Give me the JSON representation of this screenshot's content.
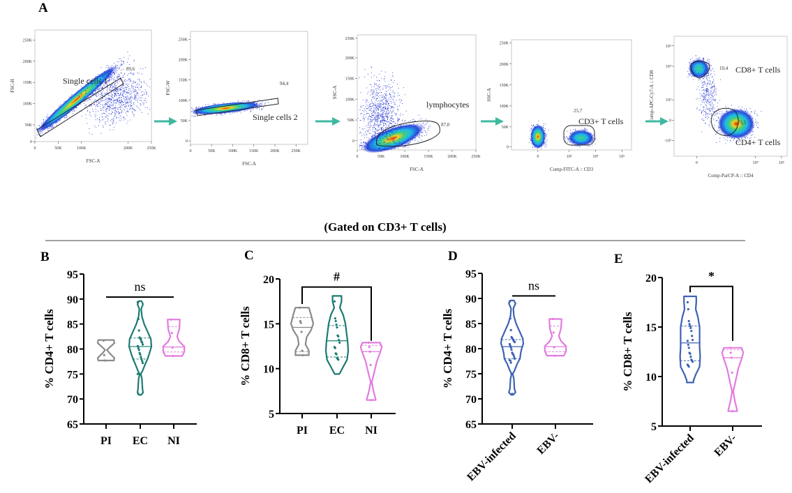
{
  "panel_a": {
    "letter": "A",
    "arrow_color": "#3fb8a0",
    "plots": [
      {
        "ylabel": "FSC-H",
        "xlabel": "FSC-A",
        "yticks": [
          "250K",
          "200K",
          "150K",
          "100K",
          "50K",
          "0"
        ],
        "xticks": [
          "0",
          "50K",
          "100K",
          "200K",
          "250K"
        ],
        "gate_name": "Single cells 1",
        "gate_pct": "89,6"
      },
      {
        "ylabel": "FSC-W",
        "xlabel": "FSC-A",
        "yticks": [
          "250K",
          "200K",
          "150K",
          "100K",
          "50K",
          "0"
        ],
        "xticks": [
          "0",
          "50K",
          "100K",
          "150K",
          "200K",
          "250K"
        ],
        "gate_name": "Single cells 2",
        "gate_pct": "94,4"
      },
      {
        "ylabel": "SSC-A",
        "xlabel": "FSC-A",
        "yticks": [
          "250K",
          "200K",
          "150K",
          "100K",
          "50K",
          "0"
        ],
        "xticks": [
          "0",
          "50K",
          "100K",
          "150K",
          "200K",
          "250K"
        ],
        "gate_name": "lymphocytes",
        "gate_pct": "87,0"
      },
      {
        "ylabel": "SSC-A",
        "xlabel": "Comp-FITC-A :: CD3",
        "yticks": [
          "250K",
          "200K",
          "150K",
          "100K",
          "50K",
          "0"
        ],
        "xticks": [
          "0",
          "10³",
          "10⁴",
          "10⁵"
        ],
        "gate_name": "CD3+ T cells",
        "gate_pct": "25,7"
      },
      {
        "ylabel": "Comp-APC-Cy7-A :: CD8",
        "xlabel": "Comp-ParCP-A :: CD4",
        "yticks": [
          "10⁵",
          "10⁴",
          "10³",
          "0",
          "-10³"
        ],
        "xticks": [
          "0",
          "10⁴",
          "10⁵"
        ],
        "gates": [
          {
            "name": "CD8+ T cells",
            "pct": "10,4"
          },
          {
            "name": "CD4+ T cells",
            "pct": "75,5"
          }
        ]
      }
    ]
  },
  "banner": "(Gated on CD3+ T cells)",
  "colors": {
    "PI": "#8a8a8a",
    "EC": "#1b7a73",
    "NI": "#e27be0",
    "EBV-infected": "#3d62b3",
    "EBV-": "#e27be0"
  },
  "chart_data": [
    {
      "type": "violin",
      "letter": "B",
      "ylabel": "% CD4+ T cells",
      "ylim": [
        65,
        95
      ],
      "yticks": [
        "95",
        "90",
        "85",
        "80",
        "75",
        "70",
        "65"
      ],
      "categories": [
        "PI",
        "EC",
        "NI"
      ],
      "annotation": {
        "text": "ns",
        "type": "bar",
        "from": "PI",
        "to": "NI",
        "y": 90.4
      },
      "groups": [
        {
          "name": "PI",
          "median": null,
          "q1": null,
          "q3": null,
          "points": [
            81.7,
            78.8,
            77.7
          ],
          "density": [
            [
              81.8,
              0.7
            ],
            [
              81.2,
              0.75
            ],
            [
              80.3,
              0.3
            ],
            [
              79.8,
              0.08
            ],
            [
              79.2,
              0.3
            ],
            [
              78.2,
              0.75
            ],
            [
              77.7,
              0.7
            ]
          ]
        },
        {
          "name": "EC",
          "median": 80.5,
          "q1": 78.0,
          "q3": 82.2,
          "points": [
            89.4,
            86.0,
            83.7,
            82.3,
            82.1,
            81.9,
            81.5,
            81.3,
            80.9,
            80.6,
            80.2,
            79.8,
            79.2,
            78.9,
            78.4,
            78.0,
            77.6,
            77.2,
            75.0,
            71.0
          ],
          "density": [
            [
              89.6,
              0.1
            ],
            [
              89.0,
              0.25
            ],
            [
              88.0,
              0.08
            ],
            [
              86.5,
              0.15
            ],
            [
              85,
              0.35
            ],
            [
              83.5,
              0.65
            ],
            [
              82,
              0.95
            ],
            [
              80.5,
              1
            ],
            [
              79,
              0.8
            ],
            [
              78,
              0.65
            ],
            [
              77,
              0.45
            ],
            [
              75.6,
              0.2
            ],
            [
              75,
              0.05
            ],
            [
              74,
              0.15
            ],
            [
              72,
              0.2
            ],
            [
              71.3,
              0.25
            ],
            [
              70.8,
              0.08
            ]
          ]
        },
        {
          "name": "NI",
          "median": 80.4,
          "q1": 79.4,
          "q3": 84.5,
          "points": [
            85.9,
            83.2,
            80.3,
            78.6
          ],
          "density": [
            [
              85.9,
              0.55
            ],
            [
              84,
              0.5
            ],
            [
              82.5,
              0.3
            ],
            [
              81.5,
              0.5
            ],
            [
              80.5,
              0.95
            ],
            [
              79.5,
              0.95
            ],
            [
              78.8,
              0.8
            ],
            [
              78.6,
              0.75
            ]
          ]
        }
      ]
    },
    {
      "type": "violin",
      "letter": "C",
      "ylabel": "% CD8+ T cells",
      "ylim": [
        5,
        20
      ],
      "yticks": [
        "20",
        "15",
        "10",
        "5"
      ],
      "categories": [
        "PI",
        "EC",
        "NI"
      ],
      "annotation": {
        "text": "#",
        "type": "bracket",
        "from": "PI",
        "to": "NI",
        "y": 19.1,
        "left_end": 17.2,
        "right_end": 13.1
      },
      "groups": [
        {
          "name": "PI",
          "median": 14.6,
          "q1": 11.9,
          "q3": 15.7,
          "points": [
            16.8,
            15.3,
            15.1,
            14.1,
            12.0,
            11.5
          ],
          "density": [
            [
              16.8,
              0.6
            ],
            [
              16,
              0.8
            ],
            [
              15,
              1.0
            ],
            [
              14.3,
              0.8
            ],
            [
              13.5,
              0.4
            ],
            [
              12.7,
              0.3
            ],
            [
              12,
              0.6
            ],
            [
              11.5,
              0.6
            ]
          ]
        },
        {
          "name": "EC",
          "median": 13.1,
          "q1": 11.3,
          "q3": 14.8,
          "points": [
            17.5,
            15.6,
            15.3,
            14.9,
            14.6,
            13.7,
            13.6,
            13.2,
            12.9,
            12.4,
            12.3,
            11.7,
            11.6,
            11.2,
            11.1,
            11.0
          ],
          "density": [
            [
              18.1,
              0.4
            ],
            [
              17.5,
              0.4
            ],
            [
              16.8,
              0.25
            ],
            [
              16,
              0.55
            ],
            [
              15,
              0.75
            ],
            [
              14,
              0.85
            ],
            [
              13,
              0.95
            ],
            [
              12,
              1.0
            ],
            [
              11,
              0.9
            ],
            [
              10.2,
              0.55
            ],
            [
              9.6,
              0.3
            ],
            [
              9.4,
              0.2
            ]
          ]
        },
        {
          "name": "NI",
          "median": 11.9,
          "q1": null,
          "q3": 12.6,
          "points": [
            12.9,
            12.4,
            11.9,
            10.4,
            6.5
          ],
          "density": [
            [
              12.9,
              0.8
            ],
            [
              12.4,
              0.95
            ],
            [
              11.8,
              0.8
            ],
            [
              10.8,
              0.5
            ],
            [
              9.5,
              0.25
            ],
            [
              8.5,
              0.05
            ],
            [
              7.5,
              0.2
            ],
            [
              6.6,
              0.4
            ],
            [
              6.5,
              0.4
            ]
          ]
        }
      ]
    },
    {
      "type": "violin",
      "letter": "D",
      "ylabel": "% CD4+ T cells",
      "ylim": [
        65,
        95
      ],
      "yticks": [
        "95",
        "90",
        "85",
        "80",
        "75",
        "70",
        "65"
      ],
      "categories": [
        "EBV-infected",
        "EBV-"
      ],
      "annotation": {
        "text": "ns",
        "type": "bar",
        "from": "EBV-infected",
        "to": "EBV-",
        "y": 90.5
      },
      "groups": [
        {
          "name": "EBV-infected",
          "median": 80.4,
          "q1": 78.0,
          "q3": 81.8,
          "points": [
            89.4,
            86.0,
            83.7,
            82.3,
            82.1,
            81.9,
            81.7,
            81.5,
            81.3,
            80.9,
            80.6,
            80.2,
            79.8,
            79.2,
            78.9,
            78.8,
            78.4,
            78.0,
            77.7,
            77.6,
            77.2,
            75.0,
            71.0
          ],
          "density": [
            [
              89.6,
              0.15
            ],
            [
              89.0,
              0.3
            ],
            [
              88.0,
              0.1
            ],
            [
              86.5,
              0.15
            ],
            [
              85,
              0.35
            ],
            [
              83.5,
              0.65
            ],
            [
              82,
              0.95
            ],
            [
              81,
              1
            ],
            [
              80,
              0.85
            ],
            [
              79,
              0.75
            ],
            [
              78,
              0.7
            ],
            [
              77,
              0.45
            ],
            [
              75.6,
              0.2
            ],
            [
              75,
              0.05
            ],
            [
              74,
              0.15
            ],
            [
              72,
              0.2
            ],
            [
              71.3,
              0.3
            ],
            [
              70.8,
              0.1
            ]
          ]
        },
        {
          "name": "EBV-",
          "median": 80.4,
          "q1": 79.4,
          "q3": 84.5,
          "points": [
            85.9,
            83.2,
            80.3,
            78.6
          ],
          "density": [
            [
              85.9,
              0.55
            ],
            [
              84,
              0.5
            ],
            [
              82.5,
              0.3
            ],
            [
              81.5,
              0.5
            ],
            [
              80.5,
              0.95
            ],
            [
              79.5,
              0.95
            ],
            [
              78.8,
              0.8
            ],
            [
              78.6,
              0.75
            ]
          ]
        }
      ]
    },
    {
      "type": "violin",
      "letter": "E",
      "ylabel": "% CD8+ T cells",
      "ylim": [
        5,
        20
      ],
      "yticks": [
        "20",
        "15",
        "10",
        "5"
      ],
      "categories": [
        "EBV-infected",
        "EBV-"
      ],
      "annotation": {
        "text": "*",
        "type": "bracket",
        "from": "EBV-infected",
        "to": "EBV-",
        "y": 19.1,
        "left_end": 18.5,
        "right_end": 13.6
      },
      "groups": [
        {
          "name": "EBV-infected",
          "median": 13.4,
          "q1": 11.6,
          "q3": 15.1,
          "points": [
            17.5,
            16.8,
            15.6,
            15.3,
            15.1,
            14.9,
            14.6,
            14.1,
            13.7,
            13.6,
            13.2,
            12.9,
            12.4,
            12.3,
            12.0,
            11.7,
            11.6,
            11.5,
            11.2,
            11.1,
            11.0
          ],
          "density": [
            [
              18.1,
              0.55
            ],
            [
              17.5,
              0.55
            ],
            [
              16.8,
              0.5
            ],
            [
              16,
              0.7
            ],
            [
              15,
              0.85
            ],
            [
              14,
              0.85
            ],
            [
              13,
              0.85
            ],
            [
              12,
              0.9
            ],
            [
              11,
              0.85
            ],
            [
              10.2,
              0.5
            ],
            [
              9.6,
              0.3
            ],
            [
              9.4,
              0.3
            ]
          ]
        },
        {
          "name": "EBV-",
          "median": 11.9,
          "q1": null,
          "q3": 12.7,
          "points": [
            12.9,
            12.4,
            11.9,
            10.4,
            6.5
          ],
          "density": [
            [
              12.9,
              0.8
            ],
            [
              12.4,
              0.95
            ],
            [
              11.8,
              0.8
            ],
            [
              10.8,
              0.5
            ],
            [
              9.5,
              0.25
            ],
            [
              8.5,
              0.05
            ],
            [
              7.5,
              0.2
            ],
            [
              6.6,
              0.4
            ],
            [
              6.5,
              0.4
            ]
          ]
        }
      ]
    }
  ]
}
